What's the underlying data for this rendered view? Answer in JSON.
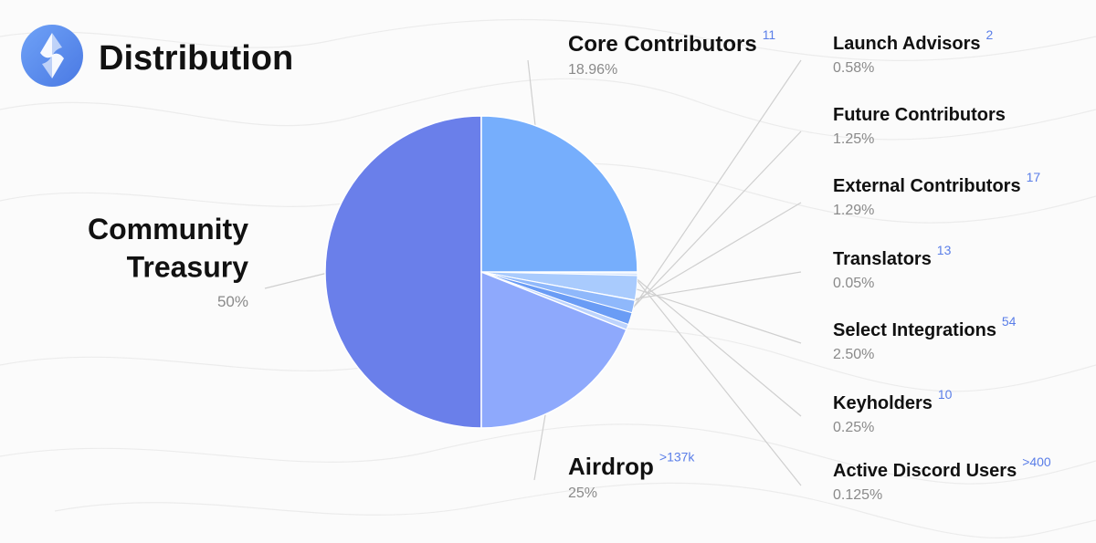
{
  "header": {
    "title": "Distribution",
    "logo_icon": "ens-logo-icon"
  },
  "colors": {
    "logo_gradient": [
      "#6a9cf6",
      "#4f7fe6"
    ],
    "accent_sup": "#5a7ee8",
    "leader_line": "#cfcfcf"
  },
  "chart_data": {
    "type": "pie",
    "slices": [
      {
        "key": "community-treasury",
        "name_lines": [
          "Community",
          "Treasury"
        ],
        "percent_label": "50%",
        "value": 50,
        "count": "",
        "color": "#6a7fea"
      },
      {
        "key": "airdrop",
        "name_lines": [
          "Airdrop"
        ],
        "percent_label": "25%",
        "value": 25,
        "count": ">137k",
        "color": "#76aefc"
      },
      {
        "key": "active-discord-users",
        "name_lines": [
          "Active Discord Users"
        ],
        "percent_label": "0.125%",
        "value": 0.125,
        "count": ">400",
        "color": "#dbe9ff"
      },
      {
        "key": "keyholders",
        "name_lines": [
          "Keyholders"
        ],
        "percent_label": "0.25%",
        "value": 0.25,
        "count": "10",
        "color": "#d2e3fe"
      },
      {
        "key": "select-integrations",
        "name_lines": [
          "Select Integrations"
        ],
        "percent_label": "2.50%",
        "value": 2.5,
        "count": "54",
        "color": "#a9cbfd"
      },
      {
        "key": "translators",
        "name_lines": [
          "Translators"
        ],
        "percent_label": "0.05%",
        "value": 0.05,
        "count": "13",
        "color": "#c6dcfe"
      },
      {
        "key": "external-contributors",
        "name_lines": [
          "External Contributors"
        ],
        "percent_label": "1.29%",
        "value": 1.29,
        "count": "17",
        "color": "#8fb8fb"
      },
      {
        "key": "future-contributors",
        "name_lines": [
          "Future Contributors"
        ],
        "percent_label": "1.25%",
        "value": 1.25,
        "count": "",
        "color": "#6a9cf5"
      },
      {
        "key": "launch-advisors",
        "name_lines": [
          "Launch Advisors"
        ],
        "percent_label": "0.58%",
        "value": 0.58,
        "count": "2",
        "color": "#bcd3fd"
      },
      {
        "key": "core-contributors",
        "name_lines": [
          "Core Contributors"
        ],
        "percent_label": "18.96%",
        "value": 18.96,
        "count": "11",
        "color": "#8ea9fc"
      }
    ]
  }
}
